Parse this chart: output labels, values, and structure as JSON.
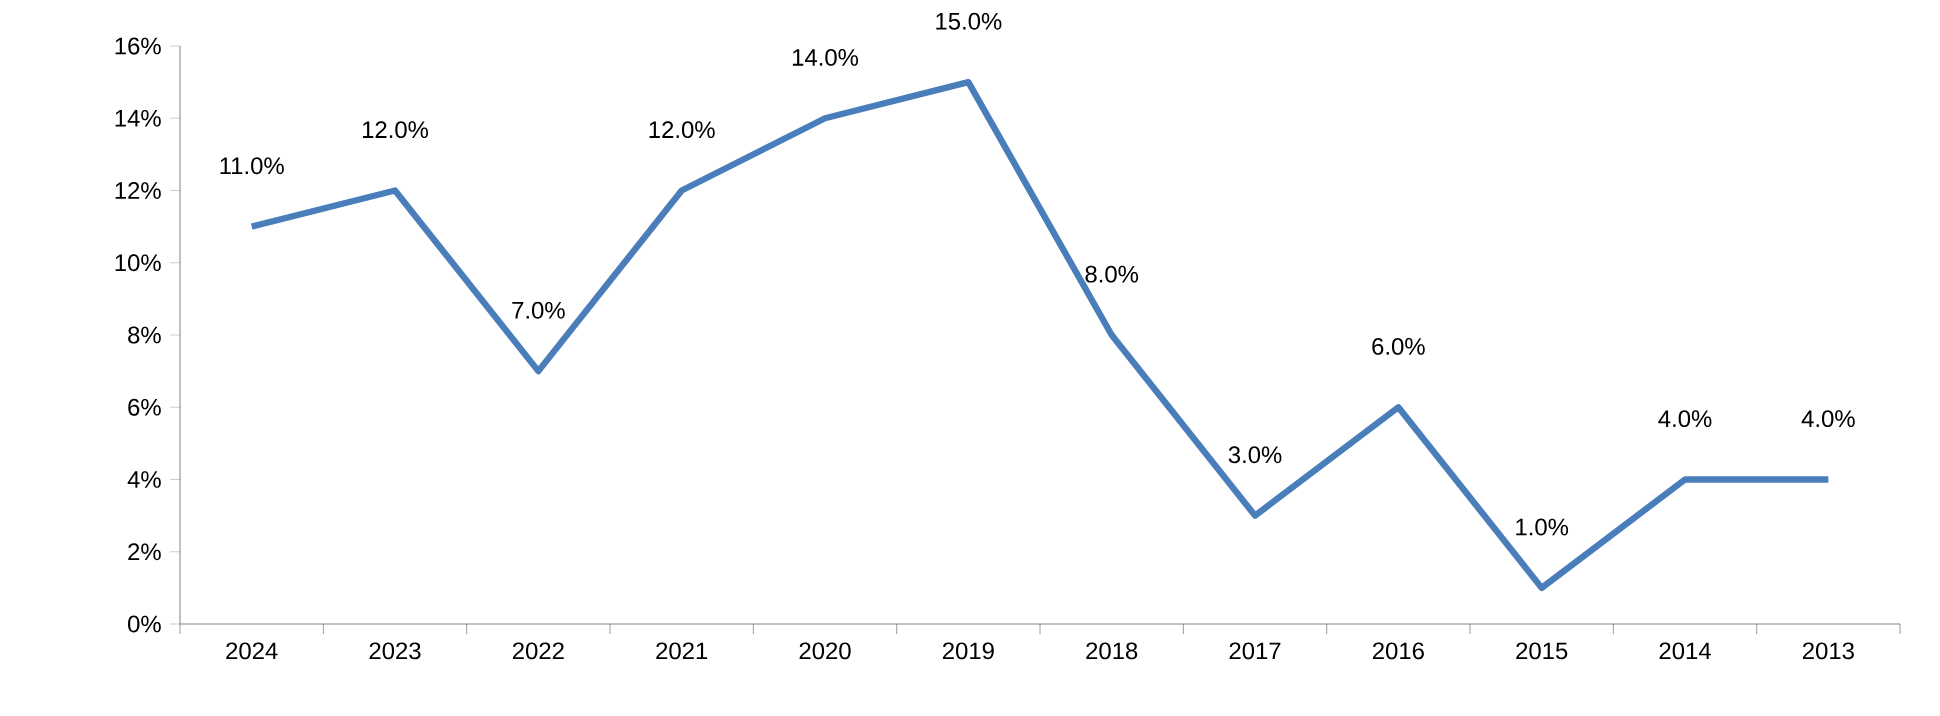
{
  "chart_data": {
    "type": "line",
    "categories": [
      "2024",
      "2023",
      "2022",
      "2021",
      "2020",
      "2019",
      "2018",
      "2017",
      "2016",
      "2015",
      "2014",
      "2013"
    ],
    "series": [
      {
        "color": "#4a7ebb",
        "values": [
          11,
          12,
          7,
          12,
          14,
          15,
          8,
          3,
          6,
          1,
          4,
          4
        ],
        "value_labels": [
          "11.0%",
          "12.0%",
          "7.0%",
          "12.0%",
          "14.0%",
          "15.0%",
          "8.0%",
          "3.0%",
          "6.0%",
          "1.0%",
          "4.0%",
          "4.0%"
        ]
      }
    ],
    "ylim": [
      0,
      16
    ],
    "yticks": [
      {
        "value": 0,
        "label": "0%"
      },
      {
        "value": 2,
        "label": "2%"
      },
      {
        "value": 4,
        "label": "4%"
      },
      {
        "value": 6,
        "label": "6%"
      },
      {
        "value": 8,
        "label": "8%"
      },
      {
        "value": 10,
        "label": "10%"
      },
      {
        "value": 12,
        "label": "12%"
      },
      {
        "value": 14,
        "label": "14%"
      },
      {
        "value": 16,
        "label": "16%"
      }
    ],
    "grid": false,
    "marker": "none",
    "line_style": "solid"
  }
}
